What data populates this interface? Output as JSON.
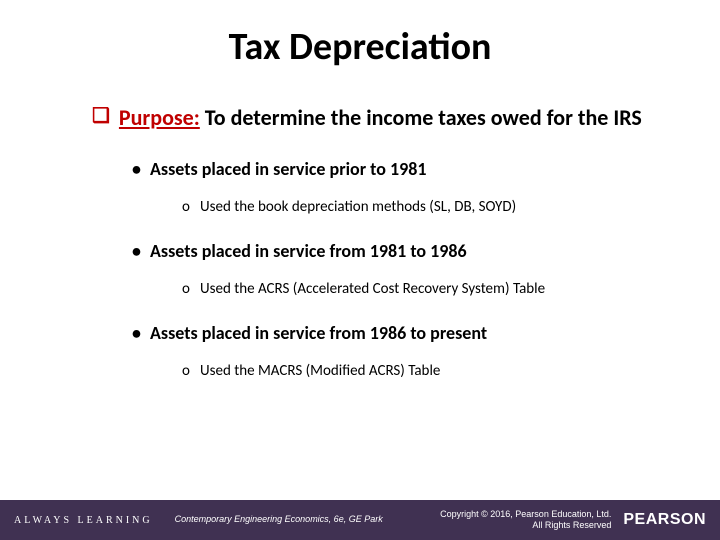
{
  "title": "Tax Depreciation",
  "purpose": {
    "label": "Purpose:",
    "text": " To determine the income taxes owed for the IRS"
  },
  "bullets": [
    {
      "heading": "Assets placed in service prior to 1981",
      "sub": "Used the book depreciation methods (SL, DB, SOYD)"
    },
    {
      "heading": "Assets placed in service from 1981 to 1986",
      "sub": "Used the ACRS (Accelerated Cost Recovery System) Table"
    },
    {
      "heading": "Assets placed in service from 1986 to present",
      "sub": "Used the MACRS (Modified ACRS) Table"
    }
  ],
  "footer": {
    "always_learning": "ALWAYS LEARNING",
    "book_credit": "Contemporary Engineering Economics, 6e, GE Park",
    "copyright": "Copyright © 2016, Pearson Education, Ltd.\nAll Rights Reserved",
    "logo": "PEARSON"
  },
  "colors": {
    "accent_red": "#c00000",
    "footer_bg": "#403152",
    "text": "#000000",
    "bg": "#ffffff"
  }
}
